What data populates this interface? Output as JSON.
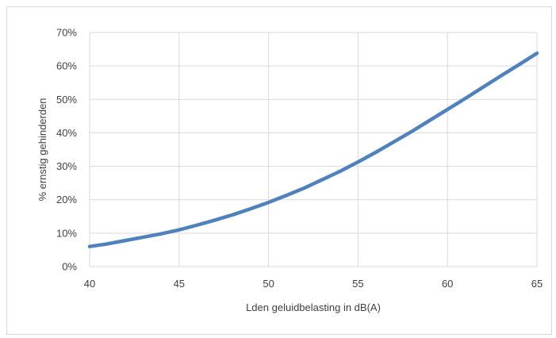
{
  "chart_data": {
    "type": "line",
    "xlabel": "Lden geluidbelasting in dB(A)",
    "ylabel": "% ernstig gehinderden",
    "xlim": [
      40,
      65
    ],
    "ylim": [
      0,
      70
    ],
    "x_ticks": [
      40,
      45,
      50,
      55,
      60,
      65
    ],
    "x_tick_labels": [
      "40",
      "45",
      "50",
      "55",
      "60",
      "65"
    ],
    "y_ticks": [
      0,
      10,
      20,
      30,
      40,
      50,
      60,
      70
    ],
    "y_tick_labels": [
      "0%",
      "10%",
      "20%",
      "30%",
      "40%",
      "50%",
      "60%",
      "70%"
    ],
    "grid": true,
    "line_color": "#4f81bd",
    "grid_color": "#d9d9d9",
    "series": [
      {
        "x": [
          40,
          41,
          42,
          43,
          44,
          45,
          46,
          47,
          48,
          49,
          50,
          51,
          52,
          53,
          54,
          55,
          56,
          57,
          58,
          59,
          60,
          61,
          62,
          63,
          64,
          65
        ],
        "values": [
          6,
          6.8,
          7.8,
          8.8,
          9.8,
          11,
          12.4,
          13.9,
          15.5,
          17.3,
          19.2,
          21.3,
          23.5,
          26,
          28.5,
          31.3,
          34.2,
          37.3,
          40.4,
          43.7,
          47,
          50.3,
          53.7,
          57.1,
          60.4,
          63.8
        ]
      }
    ]
  }
}
